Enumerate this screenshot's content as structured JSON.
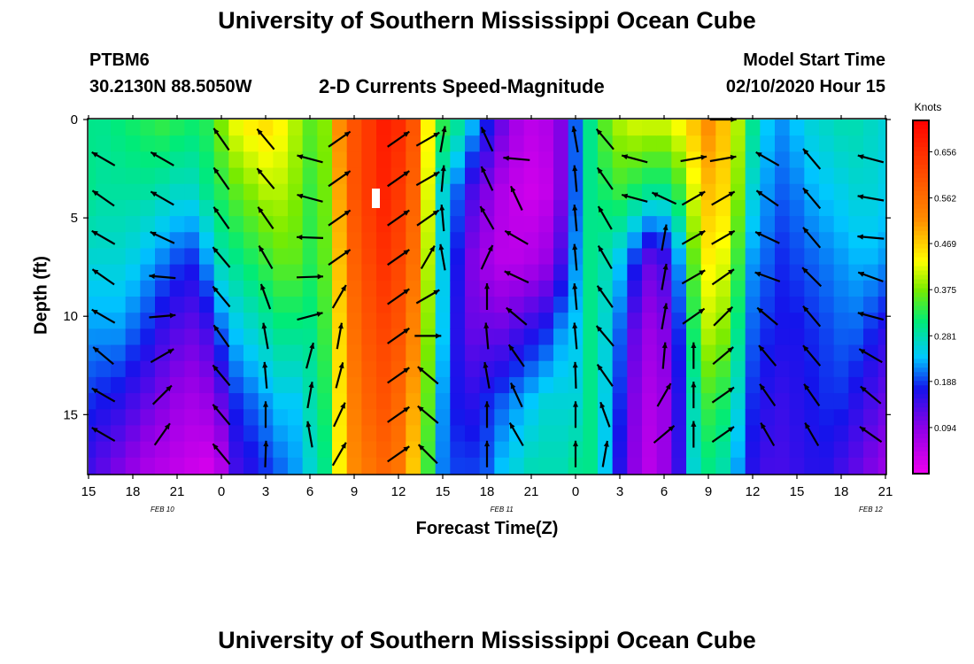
{
  "header": {
    "title": "University of Southern Mississippi Ocean Cube",
    "station_id": "PTBM6",
    "station_coords": "30.2130N 88.5050W",
    "plot_title": "2-D Currents Speed-Magnitude",
    "model_label": "Model Start Time",
    "model_time": "02/10/2020 Hour 15"
  },
  "footer": {
    "title": "University of Southern Mississippi Ocean Cube"
  },
  "chart_data": {
    "type": "heatmap",
    "title": "2-D Currents Speed-Magnitude",
    "xlabel": "Forecast Time(Z)",
    "ylabel": "Depth (ft)",
    "x_ticks": [
      "15",
      "18",
      "21",
      "0",
      "3",
      "6",
      "9",
      "12",
      "15",
      "18",
      "21",
      "0",
      "3",
      "6",
      "9",
      "12",
      "15",
      "18",
      "21"
    ],
    "x_dates": [
      "FEB 10",
      "FEB 11",
      "FEB 12"
    ],
    "y_ticks": [
      "0",
      "5",
      "10",
      "15"
    ],
    "y_tick_values": [
      0,
      5,
      10,
      15
    ],
    "ylim": [
      0,
      18
    ],
    "colorbar": {
      "label": "Knots",
      "ticks": [
        "0.656",
        "0.562",
        "0.469",
        "0.375",
        "0.281",
        "0.188",
        "0.094"
      ],
      "tick_values": [
        0.656,
        0.562,
        0.469,
        0.375,
        0.281,
        0.188,
        0.094
      ],
      "range": [
        0.0,
        0.72
      ]
    },
    "hours": [
      15,
      16,
      17,
      18,
      19,
      20,
      21,
      22,
      23,
      24,
      25,
      26,
      27,
      28,
      29,
      30,
      31,
      32,
      33,
      34,
      35,
      36,
      37,
      38,
      39,
      40,
      41,
      42,
      43,
      44,
      45,
      46,
      47,
      48,
      49,
      50,
      51,
      52,
      53,
      54,
      55,
      56,
      57,
      58,
      59,
      60,
      61,
      62,
      63,
      64,
      65,
      66,
      67,
      68,
      69
    ],
    "column_profiles": [
      [
        0.3,
        0.3,
        0.26,
        0.22,
        0.18,
        0.14
      ],
      [
        0.3,
        0.29,
        0.26,
        0.22,
        0.17,
        0.12
      ],
      [
        0.31,
        0.29,
        0.26,
        0.22,
        0.16,
        0.1
      ],
      [
        0.32,
        0.29,
        0.25,
        0.2,
        0.14,
        0.08
      ],
      [
        0.33,
        0.29,
        0.23,
        0.18,
        0.12,
        0.06
      ],
      [
        0.34,
        0.28,
        0.21,
        0.15,
        0.1,
        0.05
      ],
      [
        0.33,
        0.27,
        0.19,
        0.13,
        0.08,
        0.04
      ],
      [
        0.32,
        0.27,
        0.18,
        0.12,
        0.07,
        0.03
      ],
      [
        0.33,
        0.3,
        0.22,
        0.14,
        0.08,
        0.02
      ],
      [
        0.38,
        0.33,
        0.28,
        0.2,
        0.12,
        0.05
      ],
      [
        0.43,
        0.36,
        0.3,
        0.24,
        0.18,
        0.14
      ],
      [
        0.45,
        0.38,
        0.32,
        0.26,
        0.2,
        0.16
      ],
      [
        0.46,
        0.4,
        0.34,
        0.28,
        0.22,
        0.18
      ],
      [
        0.44,
        0.4,
        0.36,
        0.3,
        0.24,
        0.2
      ],
      [
        0.4,
        0.38,
        0.36,
        0.3,
        0.24,
        0.22
      ],
      [
        0.36,
        0.34,
        0.33,
        0.3,
        0.28,
        0.26
      ],
      [
        0.38,
        0.37,
        0.36,
        0.34,
        0.32,
        0.3
      ],
      [
        0.52,
        0.5,
        0.48,
        0.46,
        0.45,
        0.44
      ],
      [
        0.6,
        0.6,
        0.58,
        0.56,
        0.54,
        0.52
      ],
      [
        0.64,
        0.64,
        0.62,
        0.6,
        0.58,
        0.55
      ],
      [
        0.68,
        0.67,
        0.65,
        0.62,
        0.6,
        0.57
      ],
      [
        0.66,
        0.64,
        0.62,
        0.6,
        0.57,
        0.55
      ],
      [
        0.6,
        0.58,
        0.56,
        0.53,
        0.5,
        0.47
      ],
      [
        0.44,
        0.42,
        0.4,
        0.38,
        0.36,
        0.34
      ],
      [
        0.34,
        0.26,
        0.25,
        0.24,
        0.22,
        0.21
      ],
      [
        0.3,
        0.2,
        0.17,
        0.16,
        0.17,
        0.19
      ],
      [
        0.24,
        0.14,
        0.1,
        0.12,
        0.16,
        0.19
      ],
      [
        0.18,
        0.1,
        0.07,
        0.12,
        0.18,
        0.2
      ],
      [
        0.12,
        0.06,
        0.05,
        0.12,
        0.2,
        0.24
      ],
      [
        0.07,
        0.04,
        0.05,
        0.14,
        0.22,
        0.26
      ],
      [
        0.05,
        0.03,
        0.06,
        0.16,
        0.24,
        0.28
      ],
      [
        0.06,
        0.04,
        0.08,
        0.18,
        0.26,
        0.28
      ],
      [
        0.1,
        0.1,
        0.14,
        0.22,
        0.26,
        0.28
      ],
      [
        0.2,
        0.2,
        0.22,
        0.24,
        0.26,
        0.3
      ],
      [
        0.3,
        0.3,
        0.3,
        0.3,
        0.3,
        0.3
      ],
      [
        0.36,
        0.32,
        0.28,
        0.26,
        0.25,
        0.24
      ],
      [
        0.4,
        0.34,
        0.24,
        0.2,
        0.18,
        0.16
      ],
      [
        0.42,
        0.32,
        0.18,
        0.12,
        0.1,
        0.09
      ],
      [
        0.42,
        0.3,
        0.12,
        0.08,
        0.06,
        0.05
      ],
      [
        0.42,
        0.3,
        0.14,
        0.1,
        0.08,
        0.08
      ],
      [
        0.44,
        0.34,
        0.22,
        0.18,
        0.16,
        0.15
      ],
      [
        0.48,
        0.42,
        0.36,
        0.32,
        0.28,
        0.26
      ],
      [
        0.52,
        0.48,
        0.44,
        0.4,
        0.34,
        0.3
      ],
      [
        0.48,
        0.46,
        0.42,
        0.38,
        0.32,
        0.28
      ],
      [
        0.4,
        0.38,
        0.34,
        0.3,
        0.26,
        0.22
      ],
      [
        0.3,
        0.26,
        0.22,
        0.2,
        0.18,
        0.16
      ],
      [
        0.24,
        0.22,
        0.2,
        0.18,
        0.16,
        0.14
      ],
      [
        0.22,
        0.2,
        0.18,
        0.17,
        0.15,
        0.14
      ],
      [
        0.24,
        0.21,
        0.19,
        0.17,
        0.16,
        0.15
      ],
      [
        0.26,
        0.23,
        0.2,
        0.18,
        0.17,
        0.16
      ],
      [
        0.27,
        0.24,
        0.21,
        0.19,
        0.18,
        0.16
      ],
      [
        0.28,
        0.25,
        0.22,
        0.2,
        0.18,
        0.14
      ],
      [
        0.28,
        0.26,
        0.23,
        0.2,
        0.16,
        0.12
      ],
      [
        0.27,
        0.26,
        0.23,
        0.18,
        0.14,
        0.1
      ],
      [
        0.26,
        0.25,
        0.22,
        0.16,
        0.12,
        0.08
      ]
    ],
    "profile_depths_ft": [
      0,
      3.6,
      7.2,
      10.8,
      14.4,
      18
    ],
    "vectors": [
      {
        "hour": 16,
        "depth": 2,
        "angle": 150
      },
      {
        "hour": 16,
        "depth": 4,
        "angle": 145
      },
      {
        "hour": 16,
        "depth": 6,
        "angle": 150
      },
      {
        "hour": 16,
        "depth": 8,
        "angle": 145
      },
      {
        "hour": 16,
        "depth": 10,
        "angle": 150
      },
      {
        "hour": 16,
        "depth": 12,
        "angle": 140
      },
      {
        "hour": 16,
        "depth": 14,
        "angle": 150
      },
      {
        "hour": 16,
        "depth": 16,
        "angle": 150
      },
      {
        "hour": 20,
        "depth": 2,
        "angle": 150
      },
      {
        "hour": 20,
        "depth": 4,
        "angle": 150
      },
      {
        "hour": 20,
        "depth": 6,
        "angle": 155
      },
      {
        "hour": 20,
        "depth": 8,
        "angle": 175
      },
      {
        "hour": 20,
        "depth": 10,
        "angle": 5
      },
      {
        "hour": 20,
        "depth": 12,
        "angle": 30
      },
      {
        "hour": 20,
        "depth": 14,
        "angle": 45
      },
      {
        "hour": 20,
        "depth": 16,
        "angle": 55
      },
      {
        "hour": 24,
        "depth": 1,
        "angle": 125
      },
      {
        "hour": 24,
        "depth": 3,
        "angle": 125
      },
      {
        "hour": 24,
        "depth": 5,
        "angle": 125
      },
      {
        "hour": 24,
        "depth": 7,
        "angle": 130
      },
      {
        "hour": 24,
        "depth": 9,
        "angle": 130
      },
      {
        "hour": 24,
        "depth": 11,
        "angle": 125
      },
      {
        "hour": 24,
        "depth": 13,
        "angle": 130
      },
      {
        "hour": 24,
        "depth": 15,
        "angle": 130
      },
      {
        "hour": 24,
        "depth": 17,
        "angle": 130
      },
      {
        "hour": 27,
        "depth": 1,
        "angle": 130
      },
      {
        "hour": 27,
        "depth": 3,
        "angle": 130
      },
      {
        "hour": 27,
        "depth": 5,
        "angle": 125
      },
      {
        "hour": 27,
        "depth": 7,
        "angle": 120
      },
      {
        "hour": 27,
        "depth": 9,
        "angle": 110
      },
      {
        "hour": 27,
        "depth": 11,
        "angle": 100
      },
      {
        "hour": 27,
        "depth": 13,
        "angle": 95
      },
      {
        "hour": 27,
        "depth": 15,
        "angle": 90
      },
      {
        "hour": 27,
        "depth": 17,
        "angle": 88
      },
      {
        "hour": 30,
        "depth": 2,
        "angle": 165
      },
      {
        "hour": 30,
        "depth": 4,
        "angle": 165
      },
      {
        "hour": 30,
        "depth": 6,
        "angle": 178
      },
      {
        "hour": 30,
        "depth": 8,
        "angle": 2
      },
      {
        "hour": 30,
        "depth": 10,
        "angle": 15
      },
      {
        "hour": 30,
        "depth": 12,
        "angle": 75
      },
      {
        "hour": 30,
        "depth": 14,
        "angle": 80
      },
      {
        "hour": 30,
        "depth": 16,
        "angle": 100
      },
      {
        "hour": 32,
        "depth": 1,
        "angle": 35
      },
      {
        "hour": 32,
        "depth": 3,
        "angle": 35
      },
      {
        "hour": 32,
        "depth": 5,
        "angle": 35
      },
      {
        "hour": 32,
        "depth": 7,
        "angle": 35
      },
      {
        "hour": 32,
        "depth": 9,
        "angle": 60
      },
      {
        "hour": 32,
        "depth": 11,
        "angle": 80
      },
      {
        "hour": 32,
        "depth": 13,
        "angle": 75
      },
      {
        "hour": 32,
        "depth": 15,
        "angle": 65
      },
      {
        "hour": 32,
        "depth": 17,
        "angle": 60
      },
      {
        "hour": 36,
        "depth": 1,
        "angle": 35
      },
      {
        "hour": 36,
        "depth": 3,
        "angle": 35
      },
      {
        "hour": 36,
        "depth": 5,
        "angle": 35
      },
      {
        "hour": 36,
        "depth": 7,
        "angle": 35
      },
      {
        "hour": 36,
        "depth": 9,
        "angle": 35
      },
      {
        "hour": 36,
        "depth": 11,
        "angle": 35
      },
      {
        "hour": 36,
        "depth": 13,
        "angle": 35
      },
      {
        "hour": 36,
        "depth": 15,
        "angle": 35
      },
      {
        "hour": 36,
        "depth": 17,
        "angle": 35
      },
      {
        "hour": 38,
        "depth": 1,
        "angle": 30
      },
      {
        "hour": 38,
        "depth": 3,
        "angle": 30
      },
      {
        "hour": 38,
        "depth": 5,
        "angle": 35
      },
      {
        "hour": 38,
        "depth": 7,
        "angle": 60
      },
      {
        "hour": 38,
        "depth": 9,
        "angle": 30
      },
      {
        "hour": 38,
        "depth": 11,
        "angle": 0
      },
      {
        "hour": 38,
        "depth": 13,
        "angle": 140
      },
      {
        "hour": 38,
        "depth": 15,
        "angle": 140
      },
      {
        "hour": 38,
        "depth": 17,
        "angle": 135
      },
      {
        "hour": 39,
        "depth": 1,
        "angle": 80
      },
      {
        "hour": 39,
        "depth": 3,
        "angle": 85
      },
      {
        "hour": 39,
        "depth": 5,
        "angle": 95
      },
      {
        "hour": 39,
        "depth": 7,
        "angle": 100
      },
      {
        "hour": 42,
        "depth": 1,
        "angle": 115
      },
      {
        "hour": 42,
        "depth": 3,
        "angle": 115
      },
      {
        "hour": 42,
        "depth": 5,
        "angle": 120
      },
      {
        "hour": 42,
        "depth": 7,
        "angle": 65
      },
      {
        "hour": 42,
        "depth": 9,
        "angle": 90
      },
      {
        "hour": 42,
        "depth": 11,
        "angle": 95
      },
      {
        "hour": 42,
        "depth": 13,
        "angle": 100
      },
      {
        "hour": 42,
        "depth": 15,
        "angle": 90
      },
      {
        "hour": 42,
        "depth": 17,
        "angle": 90
      },
      {
        "hour": 44,
        "depth": 2,
        "angle": 175
      },
      {
        "hour": 44,
        "depth": 4,
        "angle": 115
      },
      {
        "hour": 44,
        "depth": 6,
        "angle": 150
      },
      {
        "hour": 44,
        "depth": 8,
        "angle": 155
      },
      {
        "hour": 44,
        "depth": 10,
        "angle": 140
      },
      {
        "hour": 44,
        "depth": 12,
        "angle": 125
      },
      {
        "hour": 44,
        "depth": 14,
        "angle": 115
      },
      {
        "hour": 44,
        "depth": 16,
        "angle": 120
      },
      {
        "hour": 48,
        "depth": 1,
        "angle": 100
      },
      {
        "hour": 48,
        "depth": 3,
        "angle": 95
      },
      {
        "hour": 48,
        "depth": 5,
        "angle": 95
      },
      {
        "hour": 48,
        "depth": 7,
        "angle": 95
      },
      {
        "hour": 48,
        "depth": 9,
        "angle": 95
      },
      {
        "hour": 48,
        "depth": 11,
        "angle": 95
      },
      {
        "hour": 48,
        "depth": 13,
        "angle": 92
      },
      {
        "hour": 48,
        "depth": 15,
        "angle": 90
      },
      {
        "hour": 48,
        "depth": 17,
        "angle": 90
      },
      {
        "hour": 50,
        "depth": 1,
        "angle": 130
      },
      {
        "hour": 50,
        "depth": 3,
        "angle": 125
      },
      {
        "hour": 50,
        "depth": 5,
        "angle": 120
      },
      {
        "hour": 50,
        "depth": 7,
        "angle": 120
      },
      {
        "hour": 50,
        "depth": 9,
        "angle": 125
      },
      {
        "hour": 50,
        "depth": 11,
        "angle": 130
      },
      {
        "hour": 50,
        "depth": 13,
        "angle": 125
      },
      {
        "hour": 50,
        "depth": 15,
        "angle": 110
      },
      {
        "hour": 50,
        "depth": 17,
        "angle": 80
      },
      {
        "hour": 52,
        "depth": 2,
        "angle": 165
      },
      {
        "hour": 52,
        "depth": 4,
        "angle": 165
      },
      {
        "hour": 54,
        "depth": 4,
        "angle": 155
      },
      {
        "hour": 54,
        "depth": 6,
        "angle": 80
      },
      {
        "hour": 54,
        "depth": 8,
        "angle": 80
      },
      {
        "hour": 54,
        "depth": 10,
        "angle": 80
      },
      {
        "hour": 54,
        "depth": 12,
        "angle": 85
      },
      {
        "hour": 54,
        "depth": 14,
        "angle": 60
      },
      {
        "hour": 54,
        "depth": 16,
        "angle": 40
      },
      {
        "hour": 56,
        "depth": 2,
        "angle": 10
      },
      {
        "hour": 56,
        "depth": 4,
        "angle": 30
      },
      {
        "hour": 56,
        "depth": 6,
        "angle": 30
      },
      {
        "hour": 56,
        "depth": 8,
        "angle": 30
      },
      {
        "hour": 56,
        "depth": 10,
        "angle": 35
      },
      {
        "hour": 56,
        "depth": 12,
        "angle": 90
      },
      {
        "hour": 56,
        "depth": 14,
        "angle": 90
      },
      {
        "hour": 56,
        "depth": 16,
        "angle": 90
      },
      {
        "hour": 58,
        "depth": 0,
        "angle": 0
      },
      {
        "hour": 58,
        "depth": 2,
        "angle": 10
      },
      {
        "hour": 58,
        "depth": 4,
        "angle": 30
      },
      {
        "hour": 58,
        "depth": 6,
        "angle": 30
      },
      {
        "hour": 58,
        "depth": 8,
        "angle": 35
      },
      {
        "hour": 58,
        "depth": 10,
        "angle": 45
      },
      {
        "hour": 58,
        "depth": 12,
        "angle": 40
      },
      {
        "hour": 58,
        "depth": 14,
        "angle": 35
      },
      {
        "hour": 58,
        "depth": 16,
        "angle": 35
      },
      {
        "hour": 61,
        "depth": 2,
        "angle": 150
      },
      {
        "hour": 61,
        "depth": 4,
        "angle": 145
      },
      {
        "hour": 61,
        "depth": 6,
        "angle": 155
      },
      {
        "hour": 61,
        "depth": 8,
        "angle": 160
      },
      {
        "hour": 61,
        "depth": 10,
        "angle": 140
      },
      {
        "hour": 61,
        "depth": 12,
        "angle": 130
      },
      {
        "hour": 61,
        "depth": 14,
        "angle": 125
      },
      {
        "hour": 61,
        "depth": 16,
        "angle": 120
      },
      {
        "hour": 64,
        "depth": 2,
        "angle": 130
      },
      {
        "hour": 64,
        "depth": 4,
        "angle": 130
      },
      {
        "hour": 64,
        "depth": 6,
        "angle": 130
      },
      {
        "hour": 64,
        "depth": 8,
        "angle": 135
      },
      {
        "hour": 64,
        "depth": 10,
        "angle": 130
      },
      {
        "hour": 64,
        "depth": 12,
        "angle": 130
      },
      {
        "hour": 64,
        "depth": 14,
        "angle": 125
      },
      {
        "hour": 64,
        "depth": 16,
        "angle": 120
      },
      {
        "hour": 68,
        "depth": 2,
        "angle": 165
      },
      {
        "hour": 68,
        "depth": 4,
        "angle": 170
      },
      {
        "hour": 68,
        "depth": 6,
        "angle": 175
      },
      {
        "hour": 68,
        "depth": 8,
        "angle": 160
      },
      {
        "hour": 68,
        "depth": 10,
        "angle": 165
      },
      {
        "hour": 68,
        "depth": 12,
        "angle": 150
      },
      {
        "hour": 68,
        "depth": 14,
        "angle": 140
      },
      {
        "hour": 68,
        "depth": 16,
        "angle": 145
      }
    ]
  }
}
